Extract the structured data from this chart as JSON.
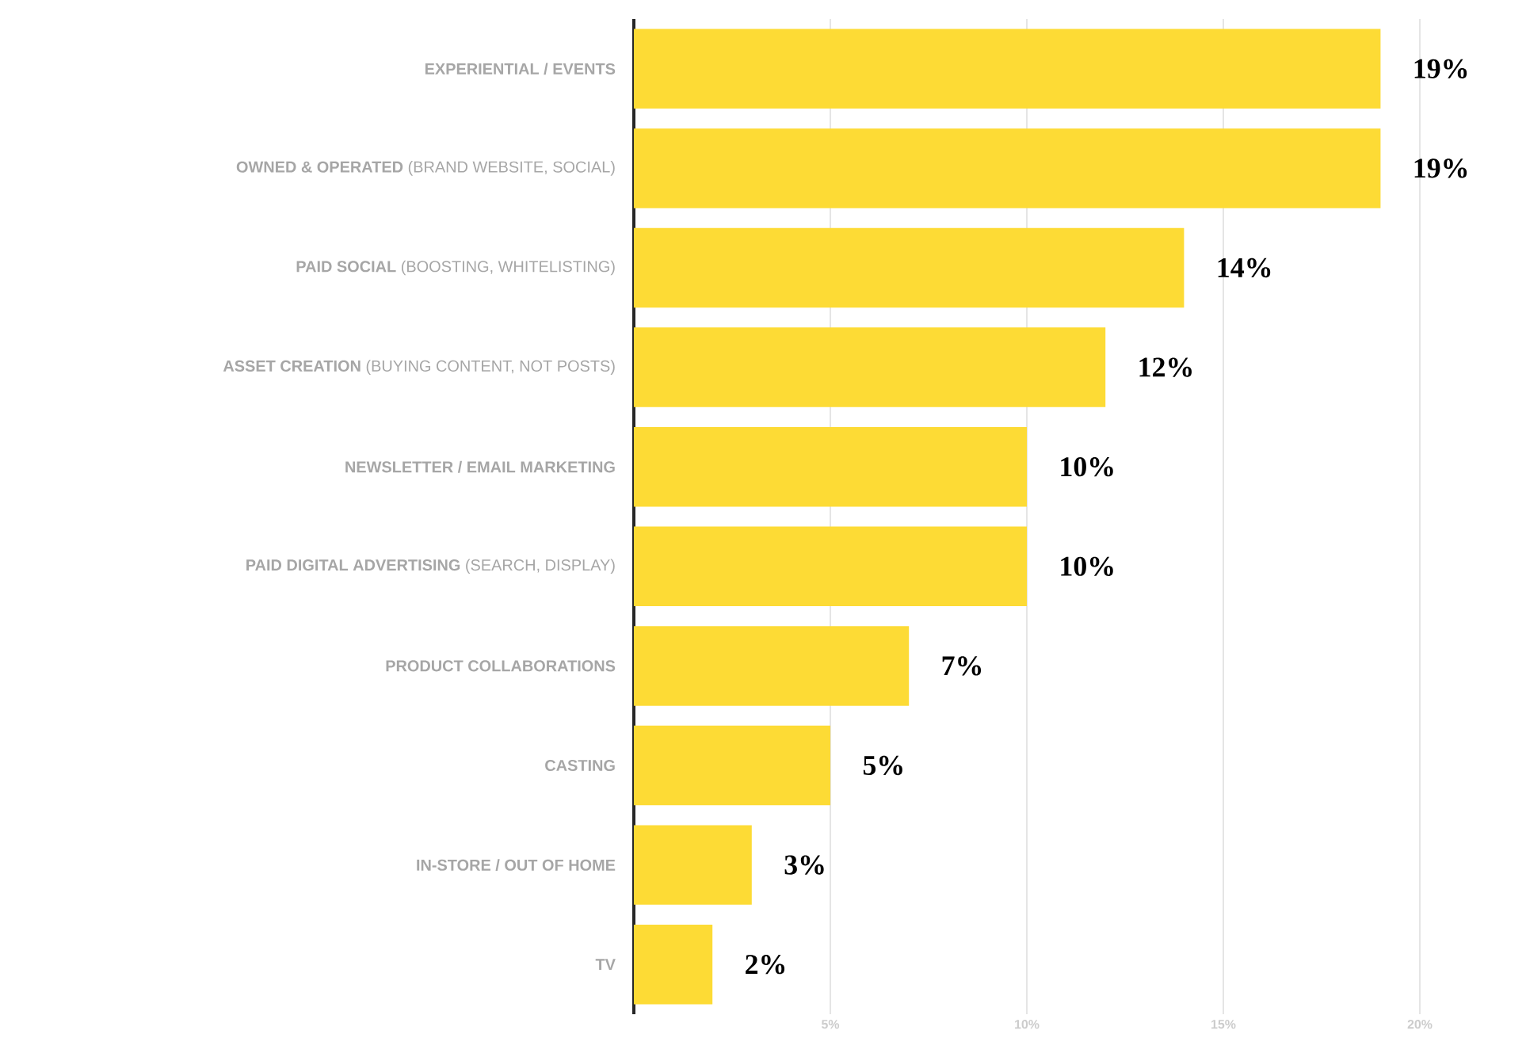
{
  "chart_data": {
    "type": "bar",
    "orientation": "horizontal",
    "categories": [
      "**EXPERIENTIAL / EVENTS**",
      "**OWNED & OPERATED** (BRAND WEBSITE, SOCIAL)",
      "**PAID SOCIAL** (BOOSTING, WHITELISTING)",
      "**ASSET CREATION** (BUYING CONTENT, NOT POSTS)",
      "**NEWSLETTER / EMAIL MARKETING**",
      "**PAID DIGITAL ADVERTISING** (SEARCH, DISPLAY)",
      "**PRODUCT COLLABORATIONS**",
      "**CASTING**",
      "**IN-STORE / OUT OF HOME**",
      "**TV**"
    ],
    "values": [
      19,
      19,
      14,
      12,
      10,
      10,
      7,
      5,
      3,
      2
    ],
    "value_labels": [
      "19%",
      "19%",
      "14%",
      "12%",
      "10%",
      "10%",
      "7%",
      "5%",
      "3%",
      "2%"
    ],
    "color": "#fddb35",
    "xlim": [
      0,
      20
    ],
    "xticks": [
      {
        "value": 5,
        "label": "5%"
      },
      {
        "value": 10,
        "label": "10%"
      },
      {
        "value": 15,
        "label": "15%"
      },
      {
        "value": 20,
        "label": "20%"
      }
    ],
    "grid": "x"
  }
}
